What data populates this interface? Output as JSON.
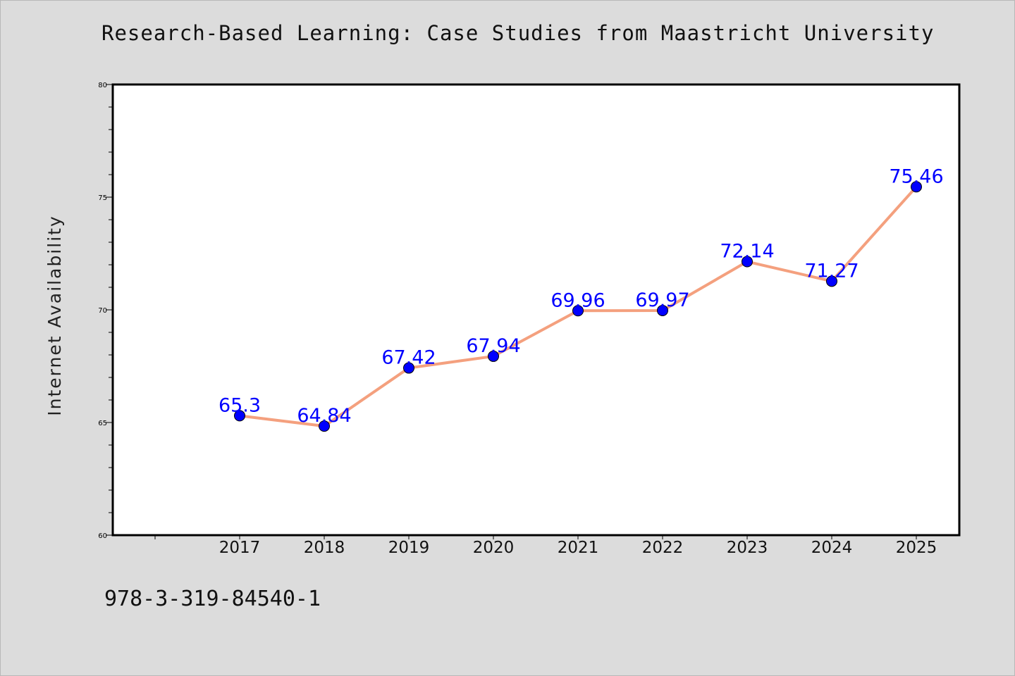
{
  "chart_data": {
    "type": "line",
    "title": "Research-Based Learning: Case Studies from Maastricht University",
    "xlabel": "",
    "ylabel": "Internet Availability",
    "categories": [
      "2017",
      "2018",
      "2019",
      "2020",
      "2021",
      "2022",
      "2023",
      "2024",
      "2025"
    ],
    "series": [
      {
        "values": [
          65.3,
          64.84,
          67.42,
          67.94,
          69.96,
          69.97,
          72.14,
          71.27,
          75.46
        ],
        "labels": [
          "65.3",
          "64.84",
          "67.42",
          "67.94",
          "69.96",
          "69.97",
          "72.14",
          "71.27",
          "75.46"
        ],
        "line_color": "#f4a07e",
        "marker_color": "#0000ff",
        "label_color": "#0000ff"
      }
    ],
    "ylim": [
      60,
      80
    ],
    "y_ticks": [
      "60",
      "65",
      "70",
      "75",
      "80"
    ],
    "grid": false,
    "legend": "none"
  },
  "footer": {
    "code": "978-3-319-84540-1"
  }
}
